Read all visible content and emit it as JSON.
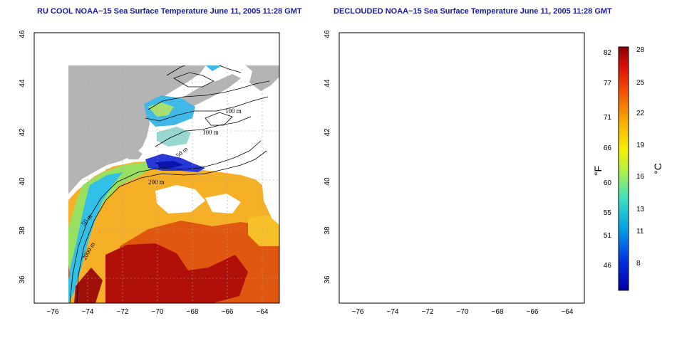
{
  "titles": {
    "left": "RU COOL NOAA−15 Sea Surface Temperature June 11, 2005 11:28 GMT",
    "right": "DECLOUDED NOAA−15 Sea Surface Temperature June 11, 2005 11:28 GMT"
  },
  "axes": {
    "x_ticks": [
      "−76",
      "−74",
      "−72",
      "−70",
      "−68",
      "−66",
      "−64"
    ],
    "y_ticks": [
      "46",
      "44",
      "42",
      "40",
      "38",
      "36"
    ]
  },
  "contour_labels": {
    "m100a": "100 m",
    "m100b": "100 m",
    "m50a": "50 m",
    "m200": "200 m",
    "m50b": "50 m",
    "m2000": "2000 m"
  },
  "colorbar": {
    "f_ticks": [
      "82",
      "77",
      "71",
      "66",
      "60",
      "55",
      "51",
      "46"
    ],
    "c_ticks": [
      "28",
      "25",
      "22",
      "19",
      "16",
      "13",
      "11",
      "8"
    ],
    "f_label": "°F",
    "c_label": "°C"
  },
  "colors": {
    "land": "#b4b4b4",
    "ocean_bg": "#ffffff",
    "cold": "#1420c8",
    "cool": "#30b4e8",
    "mild": "#90e060",
    "warm": "#f8b020",
    "hot": "#e83010",
    "hottest": "#a00808"
  }
}
